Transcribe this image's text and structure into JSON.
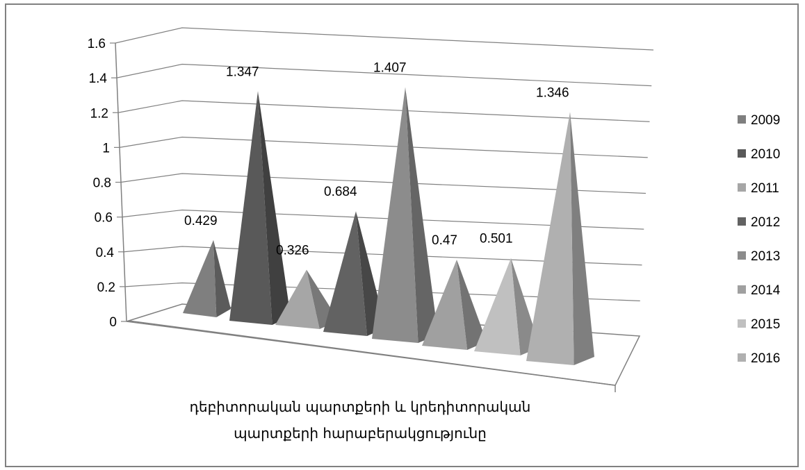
{
  "chart_data": {
    "type": "bar",
    "bar_shape": "3d-pyramid",
    "categories": [
      "2009",
      "2010",
      "2011",
      "2012",
      "2013",
      "2014",
      "2015",
      "2016"
    ],
    "values": [
      0.429,
      1.347,
      0.326,
      0.684,
      1.407,
      0.47,
      0.501,
      1.346
    ],
    "data_labels": [
      "0.429",
      "1.347",
      "0.326",
      "0.684",
      "1.407",
      "0.47",
      "0.501",
      "1.346"
    ],
    "series_colors": [
      "#7f7f7f",
      "#595959",
      "#a6a6a6",
      "#626262",
      "#8c8c8c",
      "#a0a0a0",
      "#c0c0c0",
      "#b0b0b0"
    ],
    "title": "",
    "xlabel_lines": [
      "դեբիտորական պարտքերի և կրեդիտորական",
      "պարտքերի հարաբերակցությունը"
    ],
    "ylabel": "",
    "ylim": [
      0,
      1.6
    ],
    "yticks": [
      "0",
      "0.2",
      "0.4",
      "0.6",
      "0.8",
      "1",
      "1.2",
      "1.4",
      "1.6"
    ],
    "grid": true,
    "legend_position": "right",
    "legend": [
      "2009",
      "2010",
      "2011",
      "2012",
      "2013",
      "2014",
      "2015",
      "2016"
    ]
  }
}
